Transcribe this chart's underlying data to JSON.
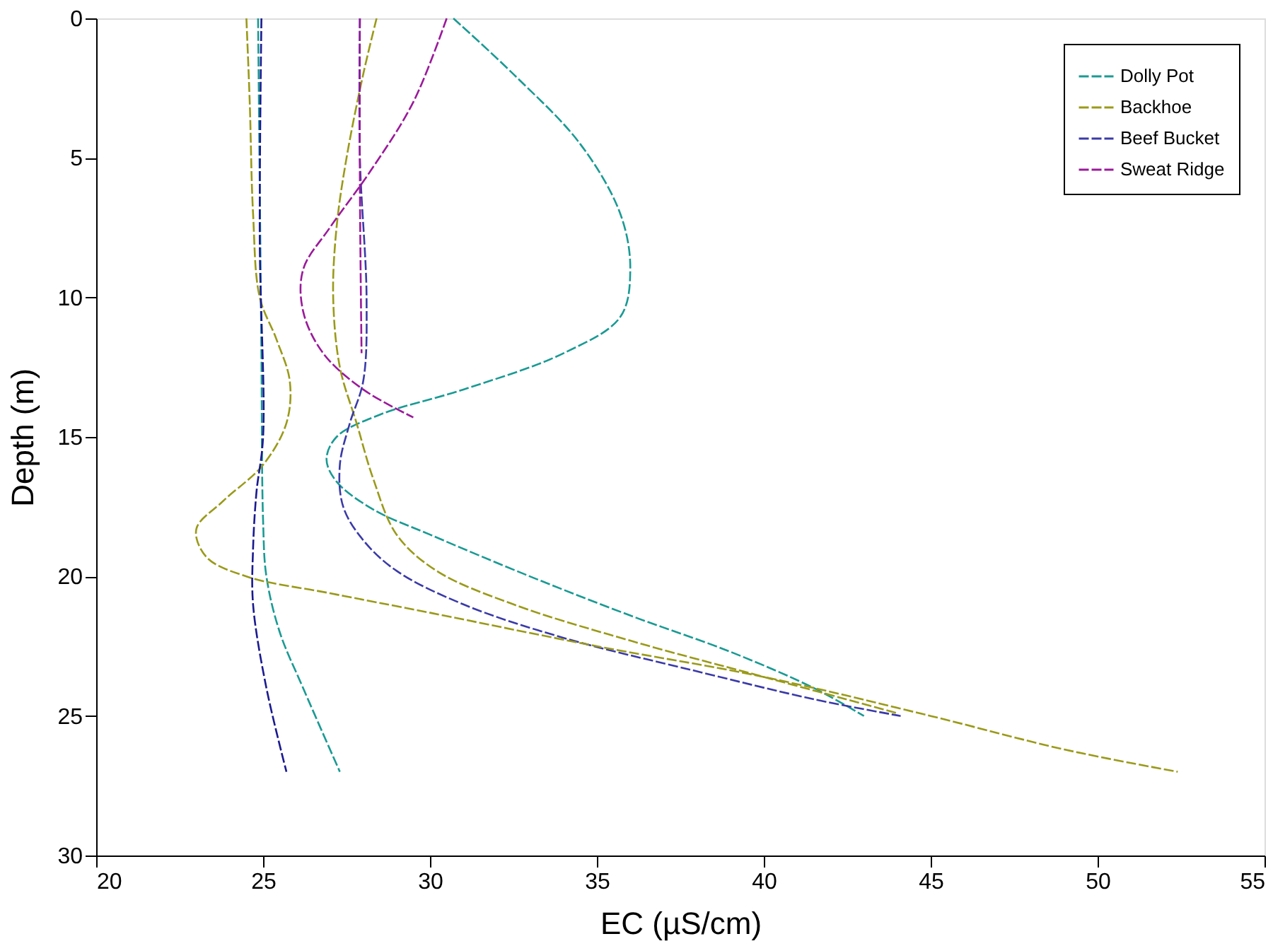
{
  "chart_data": {
    "type": "line",
    "xlabel": "EC (µS/cm)",
    "ylabel": "Depth (m)",
    "xlim": [
      20,
      55
    ],
    "xticks": [
      20,
      25,
      30,
      35,
      40,
      45,
      50,
      55
    ],
    "ylim": [
      30,
      0
    ],
    "yticks": [
      0,
      5,
      10,
      15,
      20,
      25,
      30
    ],
    "grid": false,
    "legend": "top right",
    "line_style": "dashed",
    "marker": "none",
    "series": [
      {
        "name": "Dolly Pot",
        "color": "#1a9a94",
        "x": [
          30.7,
          32.5,
          34.5,
          35.7,
          36,
          35.7,
          34,
          31,
          28.5,
          27.2,
          26.9,
          27.2,
          28.3,
          30,
          33,
          36,
          39,
          41.5,
          43
        ],
        "values": [
          0,
          2,
          4.5,
          7,
          9,
          10.7,
          12,
          13.3,
          14.2,
          15,
          15.8,
          16.6,
          17.6,
          18.5,
          20,
          21.4,
          22.7,
          24,
          25
        ]
      },
      {
        "name": "Backhoe",
        "color": "#9a9a1a",
        "x": [
          28.4,
          28.0,
          27.5,
          27.2,
          27.1,
          27.3,
          27.8,
          28.3,
          29,
          30.2,
          32.5,
          36,
          40,
          44
        ],
        "values": [
          0,
          2,
          5,
          7.5,
          10,
          12.5,
          14.5,
          16.5,
          18.5,
          19.8,
          21,
          22.3,
          23.6,
          24.9
        ]
      },
      {
        "name": "Beef Bucket",
        "color": "#3a3aa8",
        "x": [
          27.9,
          27.9,
          28.1,
          28.0,
          27.6,
          27.3,
          27.4,
          28,
          29,
          31,
          34,
          38,
          41.5,
          44.1
        ],
        "values": [
          0,
          5,
          10,
          13,
          14.5,
          16,
          17.5,
          18.7,
          19.8,
          21,
          22.2,
          23.4,
          24.4,
          25
        ]
      },
      {
        "name": "Sweat Ridge",
        "color": "#9a1a9a",
        "x": [
          30.5,
          29.5,
          28.2,
          27,
          26.2,
          26.2,
          26.8,
          28,
          29.5
        ],
        "values": [
          0,
          3,
          5.5,
          7.5,
          9,
          10.5,
          12,
          13.3,
          14.3
        ]
      },
      {
        "color": "#1a9a94",
        "x": [
          24.85,
          24.9,
          24.95,
          25.0,
          25.1,
          25.5,
          26.2,
          27.3
        ],
        "values": [
          0,
          6,
          12,
          18,
          20,
          22,
          24,
          27
        ]
      },
      {
        "color": "#9a9a1a",
        "x": [
          24.5,
          24.6,
          24.7,
          24.9,
          25.4,
          25.8,
          25.7,
          25,
          23.8,
          23,
          23.3,
          24.5,
          27,
          30,
          35,
          40,
          45,
          49,
          52.4
        ],
        "values": [
          0,
          3,
          7,
          10,
          11.5,
          13,
          14.5,
          16,
          17.3,
          18.3,
          19.3,
          20,
          20.6,
          21.3,
          22.5,
          23.6,
          25,
          26.2,
          27
        ]
      },
      {
        "color": "#1a1a90",
        "x": [
          24.95,
          24.9,
          25.0,
          24.8,
          24.7,
          24.7,
          25.1,
          25.7
        ],
        "values": [
          0,
          8,
          15,
          17,
          19,
          21,
          24,
          27
        ]
      },
      {
        "color": "#9a1a9a",
        "x": [
          27.9,
          27.9,
          27.95
        ],
        "values": [
          0,
          6,
          12
        ]
      }
    ]
  }
}
